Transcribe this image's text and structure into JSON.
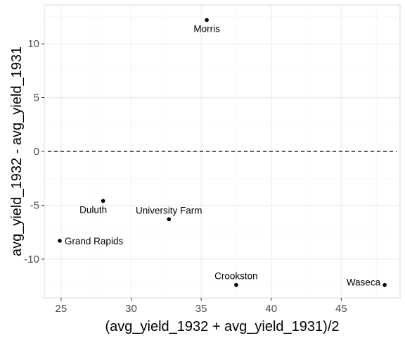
{
  "chart_data": {
    "type": "scatter",
    "title": "",
    "xlabel": "(avg_yield_1932 + avg_yield_1931)/2",
    "ylabel": "avg_yield_1932 - avg_yield_1931",
    "xlim": [
      23.8,
      49.2
    ],
    "ylim": [
      -13.6,
      13.6
    ],
    "x_ticks": [
      25,
      30,
      35,
      40,
      45
    ],
    "x_minor_ticks": [
      27.5,
      32.5,
      37.5,
      42.5,
      47.5
    ],
    "y_ticks": [
      -10,
      -5,
      0,
      5,
      10
    ],
    "y_minor_ticks": [
      -12.5,
      -7.5,
      -2.5,
      2.5,
      7.5,
      12.5
    ],
    "grid": true,
    "reference_line": {
      "y": 0,
      "style": "dashed"
    },
    "points": [
      {
        "label": "Morris",
        "x": 35.4,
        "y": 12.2,
        "label_pos": "below"
      },
      {
        "label": "Duluth",
        "x": 28.0,
        "y": -4.6,
        "label_pos": "below-left"
      },
      {
        "label": "University Farm",
        "x": 32.7,
        "y": -6.3,
        "label_pos": "above"
      },
      {
        "label": "Grand Rapids",
        "x": 24.9,
        "y": -8.3,
        "label_pos": "right"
      },
      {
        "label": "Crookston",
        "x": 37.5,
        "y": -12.4,
        "label_pos": "above"
      },
      {
        "label": "Waseca",
        "x": 48.1,
        "y": -12.4,
        "label_pos": "left"
      }
    ]
  },
  "colors": {
    "panel_border": "#d9d9d9",
    "grid_major": "#ebebeb",
    "grid_minor": "#f5f5f5",
    "point": "#000000",
    "reference_line": "#000000"
  }
}
